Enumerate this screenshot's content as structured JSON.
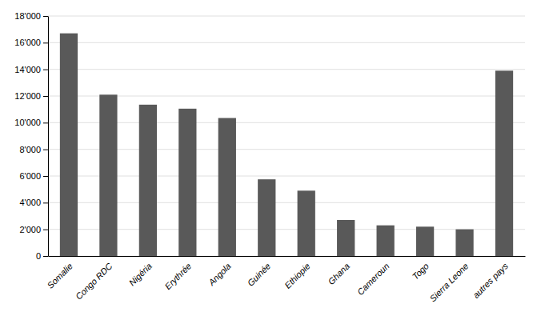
{
  "chart_data": {
    "type": "bar",
    "categories": [
      "Somalie",
      "Congo RDC",
      "Nigéria",
      "Erythrée",
      "Angola",
      "Guinée",
      "Ethiopie",
      "Ghana",
      "Cameroun",
      "Togo",
      "Sierra Leone",
      "autres pays"
    ],
    "values": [
      16700,
      12100,
      11350,
      11050,
      10350,
      5750,
      4900,
      2700,
      2300,
      2200,
      2000,
      13900
    ],
    "color": "#595959",
    "ylim": [
      0,
      18000
    ],
    "yticks": [
      0,
      {
        "value": 2000,
        "label": "2'000"
      },
      {
        "value": 4000,
        "label": "4'000"
      },
      {
        "value": 6000,
        "label": "6'000"
      },
      {
        "value": 8000,
        "label": "8'000"
      },
      {
        "value": 10000,
        "label": "10'000"
      },
      {
        "value": 12000,
        "label": "12'000"
      },
      {
        "value": 14000,
        "label": "14'000"
      },
      {
        "value": 16000,
        "label": "16'000"
      },
      {
        "value": 18000,
        "label": "18'000"
      }
    ],
    "grid": true
  }
}
